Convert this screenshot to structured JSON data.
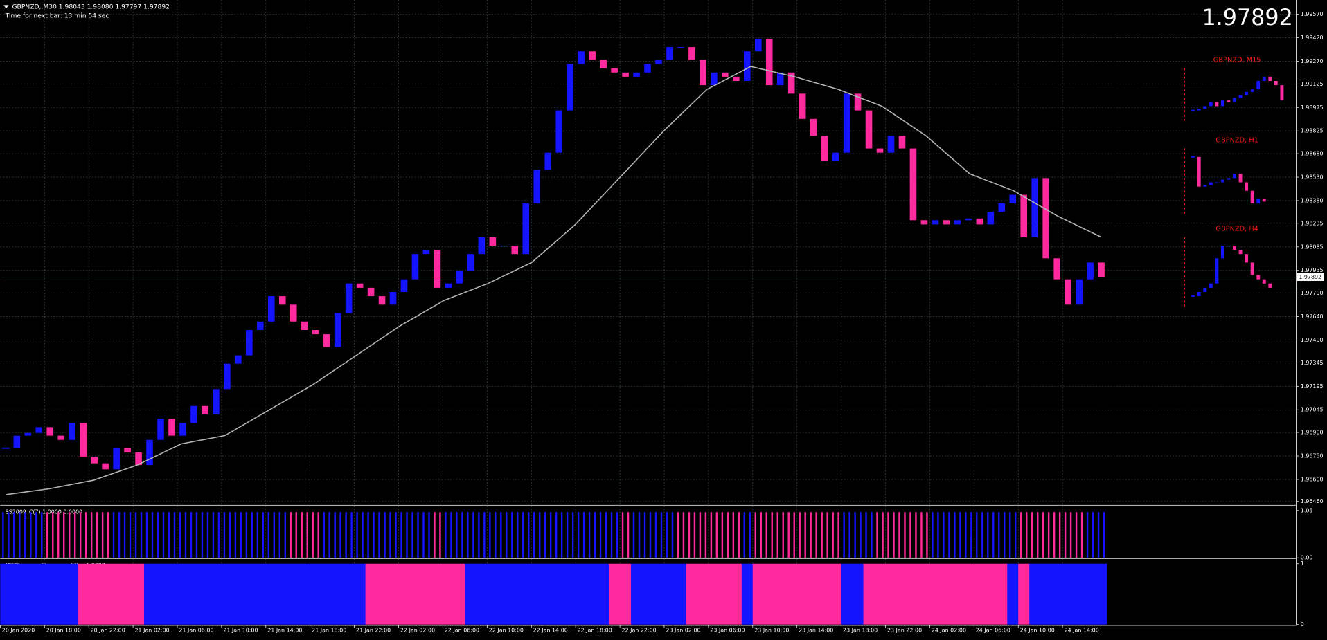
{
  "chart_data": {
    "type": "candlestick",
    "title": "GBPNZD,,M30  1.98043 1.98080 1.97797 1.97892",
    "subtitle": "Time for next bar: 13 min 54 sec",
    "last_price": 1.97892,
    "colors": {
      "up": "#1414ff",
      "down": "#ff2a9d",
      "ma": "#b4b4b4",
      "grid": "#3a4a4a",
      "last_price": "#7cfc00"
    },
    "grid": true,
    "ylim": [
      1.9644,
      1.9965
    ],
    "yticks": [
      {
        "value": 1.9957,
        "label": "1.99570"
      },
      {
        "value": 1.9942,
        "label": "1.99420"
      },
      {
        "value": 1.9927,
        "label": "1.99270"
      },
      1.99125,
      1.98975,
      1.98825,
      {
        "value": 1.9868,
        "label": "1.98680"
      },
      {
        "value": 1.9853,
        "label": "1.98530"
      },
      {
        "value": 1.9838,
        "label": "1.98380"
      },
      1.98235,
      1.98085,
      1.97935,
      {
        "value": 1.9779,
        "label": "1.97790"
      },
      {
        "value": 1.9764,
        "label": "1.97640"
      },
      {
        "value": 1.9749,
        "label": "1.97490"
      },
      1.97345,
      1.97195,
      1.97045,
      {
        "value": 1.969,
        "label": "1.96900"
      },
      {
        "value": 1.9675,
        "label": "1.96750"
      },
      {
        "value": 1.966,
        "label": "1.96600"
      },
      {
        "value": 1.9646,
        "label": "1.96460"
      }
    ],
    "x_labels": [
      "20 Jan 2020",
      "20 Jan 18:00",
      "20 Jan 22:00",
      "21 Jan 02:00",
      "21 Jan 06:00",
      "21 Jan 10:00",
      "21 Jan 14:00",
      "21 Jan 18:00",
      "21 Jan 22:00",
      "22 Jan 02:00",
      "22 Jan 06:00",
      "22 Jan 10:00",
      "22 Jan 14:00",
      "22 Jan 18:00",
      "22 Jan 22:00",
      "23 Jan 02:00",
      "23 Jan 06:00",
      "23 Jan 10:00",
      "23 Jan 14:00",
      "23 Jan 18:00",
      "23 Jan 22:00",
      "24 Jan 02:00",
      "24 Jan 06:00",
      "24 Jan 10:00",
      "24 Jan 14:00"
    ],
    "close": [
      1.968,
      1.9688,
      1.96897,
      1.96934,
      1.9688,
      1.96853,
      1.96961,
      1.96746,
      1.96703,
      1.96665,
      1.968,
      1.96773,
      1.96692,
      1.96853,
      1.96988,
      1.9688,
      1.96961,
      1.97069,
      1.97015,
      1.97177,
      1.97339,
      1.97392,
      1.97554,
      1.97608,
      1.9777,
      1.97716,
      1.97608,
      1.97554,
      1.97527,
      1.97446,
      1.97662,
      1.97851,
      1.97824,
      1.9777,
      1.97716,
      1.97797,
      1.97878,
      1.98039,
      1.98066,
      1.97824,
      1.97851,
      1.97931,
      1.98039,
      1.98147,
      1.98093,
      1.98093,
      1.98039,
      1.98363,
      1.98578,
      1.98686,
      1.98956,
      1.99252,
      1.99333,
      1.99279,
      1.99225,
      1.99198,
      1.99171,
      1.99198,
      1.99252,
      1.99279,
      1.9936,
      1.9936,
      1.99279,
      1.99117,
      1.99198,
      1.99171,
      1.99144,
      1.99333,
      1.99414,
      1.99117,
      1.99198,
      1.99063,
      1.98902,
      1.98794,
      1.98632,
      1.98686,
      1.99063,
      1.98956,
      1.98713,
      1.98686,
      1.98794,
      1.98713,
      1.98255,
      1.98228,
      1.98255,
      1.98228,
      1.98255,
      1.98266,
      1.98228,
      1.98309,
      1.98363,
      1.98417,
      1.98147,
      1.98524,
      1.98012,
      1.97878,
      1.97716,
      1.97878,
      1.97985,
      1.97892
    ],
    "ma": [
      1.96503,
      1.96541,
      1.96595,
      1.96692,
      1.96827,
      1.9688,
      1.97042,
      1.97204,
      1.97392,
      1.97581,
      1.97743,
      1.97851,
      1.97985,
      1.98228,
      1.98524,
      1.98821,
      1.9909,
      1.99236,
      1.99171,
      1.9909,
      1.98982,
      1.98794,
      1.98551,
      1.98443,
      1.98282,
      1.98147
    ],
    "timeframes": [
      {
        "name": "GBPNZD, M15",
        "color": "#ff1a1a",
        "values": [
          1.98956,
          1.98966,
          1.98983,
          1.99009,
          1.98983,
          1.9902,
          1.99009,
          1.99036,
          1.99053,
          1.99074,
          1.9909,
          1.99144,
          1.99171,
          1.99144,
          1.99117,
          1.9902
        ]
      },
      {
        "name": "GBPNZD, H1",
        "color": "#ff1a1a",
        "values": [
          1.98659,
          1.9847,
          1.98481,
          1.98497,
          1.98497,
          1.98514,
          1.98524,
          1.98551,
          1.98497,
          1.98443,
          1.98363,
          1.9839,
          1.98374
        ]
      },
      {
        "name": "GBPNZD, H4",
        "color": "#ff1a1a",
        "values": [
          1.9777,
          1.97797,
          1.97824,
          1.97851,
          1.98012,
          1.98093,
          1.98093,
          1.98066,
          1.98039,
          1.97985,
          1.97905,
          1.97878,
          1.97851,
          1.97824
        ]
      }
    ],
    "panels": [
      {
        "title": "SS2009_C(7) 1.0000 0.0000",
        "ylim": [
          0,
          1.05
        ],
        "yticks": [
          {
            "value": 1.05,
            "label": "1.05"
          },
          {
            "value": 0,
            "label": "0.00"
          }
        ],
        "values": [
          0,
          0,
          0,
          0,
          1,
          1,
          1,
          1,
          1,
          1,
          0,
          0,
          0,
          0,
          0,
          0,
          0,
          0,
          0,
          0,
          0,
          0,
          0,
          0,
          0,
          0,
          1,
          1,
          1,
          0,
          0,
          0,
          0,
          0,
          0,
          0,
          0,
          0,
          0,
          1,
          0,
          0,
          0,
          0,
          0,
          0,
          0,
          0,
          0,
          0,
          0,
          0,
          0,
          0,
          0,
          0,
          1,
          0,
          0,
          0,
          0,
          1,
          1,
          1,
          1,
          1,
          1,
          0,
          1,
          1,
          1,
          1,
          1,
          1,
          1,
          1,
          0,
          0,
          0,
          1,
          1,
          1,
          1,
          1,
          0,
          0,
          0,
          0,
          0,
          0,
          0,
          0,
          1,
          1,
          1,
          1,
          1,
          1,
          0,
          0
        ]
      },
      {
        "title": "M30ForexprofitsupremeFilter 1.0000",
        "ylim": [
          0,
          1
        ],
        "yticks": [
          1,
          0
        ],
        "values": [
          0,
          0,
          0,
          0,
          0,
          0,
          0,
          1,
          1,
          1,
          1,
          1,
          1,
          0,
          0,
          0,
          0,
          0,
          0,
          0,
          0,
          0,
          0,
          0,
          0,
          0,
          0,
          0,
          0,
          0,
          0,
          0,
          0,
          1,
          1,
          1,
          1,
          1,
          1,
          1,
          1,
          1,
          0,
          0,
          0,
          0,
          0,
          0,
          0,
          0,
          0,
          0,
          0,
          0,
          0,
          1,
          1,
          0,
          0,
          0,
          0,
          0,
          1,
          1,
          1,
          1,
          1,
          0,
          1,
          1,
          1,
          1,
          1,
          1,
          1,
          1,
          0,
          0,
          1,
          1,
          1,
          1,
          1,
          1,
          1,
          1,
          1,
          1,
          1,
          1,
          1,
          0,
          1,
          0,
          0,
          0,
          0,
          0,
          0,
          0
        ]
      }
    ]
  }
}
